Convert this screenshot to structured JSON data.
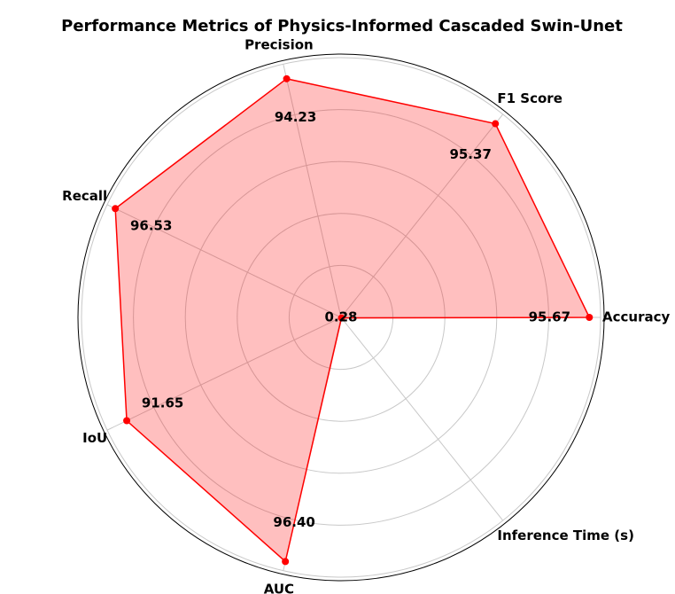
{
  "chart_data": {
    "type": "radar",
    "title": "Performance Metrics of Physics-Informed Cascaded Swin-Unet",
    "categories": [
      "Accuracy",
      "F1 Score",
      "Precision",
      "Recall",
      "IoU",
      "AUC",
      "Inference Time (s)"
    ],
    "values": [
      95.67,
      95.37,
      94.23,
      96.53,
      91.65,
      96.4,
      0.28
    ],
    "value_labels": [
      "95.67",
      "95.37",
      "94.23",
      "96.53",
      "91.65",
      "96.40",
      "0.28"
    ],
    "color": "#ff0000",
    "rlim": [
      0,
      100
    ],
    "rticks": [
      20,
      40,
      60,
      80,
      100
    ],
    "grid": true
  }
}
